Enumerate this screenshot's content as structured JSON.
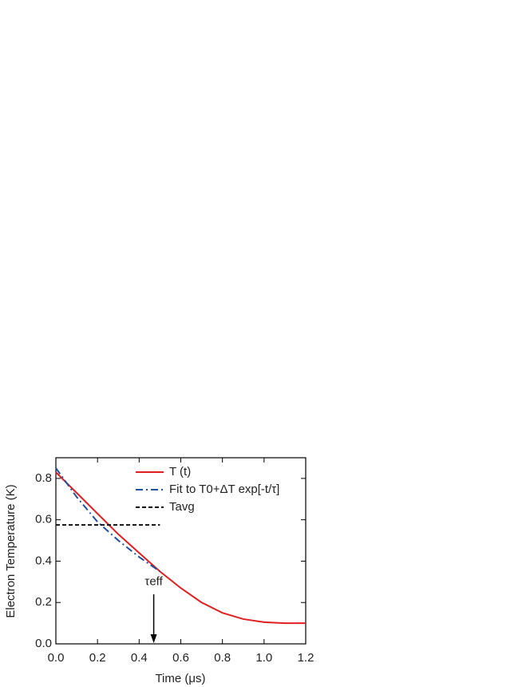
{
  "chart_data": {
    "type": "line",
    "xlabel": "Time (μs)",
    "ylabel": "Electron Temperature (K)",
    "xlim": [
      0,
      1.2
    ],
    "ylim": [
      0,
      0.9
    ],
    "xticks": [
      {
        "value": 0,
        "label": "0.0"
      },
      {
        "value": 0.2,
        "label": "0.2"
      },
      {
        "value": 0.4,
        "label": "0.4"
      },
      {
        "value": 0.6,
        "label": "0.6"
      },
      {
        "value": 0.8,
        "label": "0.8"
      },
      {
        "value": 1,
        "label": "1.0"
      },
      {
        "value": 1.2,
        "label": "1.2"
      }
    ],
    "yticks": [
      {
        "value": 0,
        "label": "0.0"
      },
      {
        "value": 0.2,
        "label": "0.2"
      },
      {
        "value": 0.4,
        "label": "0.4"
      },
      {
        "value": 0.6,
        "label": "0.6"
      },
      {
        "value": 0.8,
        "label": "0.8"
      }
    ],
    "legend": "upper right",
    "series": [
      {
        "name": "T (t)",
        "color": "#e02020",
        "style": "solid",
        "x": [
          0,
          0.1,
          0.2,
          0.3,
          0.4,
          0.5,
          0.6,
          0.7,
          0.8,
          0.9,
          1,
          1.1,
          1.2
        ],
        "values": [
          0.83,
          0.73,
          0.63,
          0.53,
          0.44,
          0.35,
          0.27,
          0.2,
          0.15,
          0.12,
          0.105,
          0.1,
          0.1
        ]
      },
      {
        "name": "Fit to T0+ΔT exp[-t/τ]",
        "color": "#2050a0",
        "style": "dashdot",
        "x": [
          0,
          0.1,
          0.2,
          0.3,
          0.4,
          0.5
        ],
        "values": [
          0.85,
          0.71,
          0.59,
          0.5,
          0.42,
          0.35
        ]
      },
      {
        "name": "Tavg",
        "color": "#111111",
        "style": "dashed",
        "x": [
          0,
          0.5
        ],
        "values": [
          0.575,
          0.575
        ]
      }
    ],
    "annotation": {
      "text": "τeff",
      "x": 0.47
    }
  }
}
